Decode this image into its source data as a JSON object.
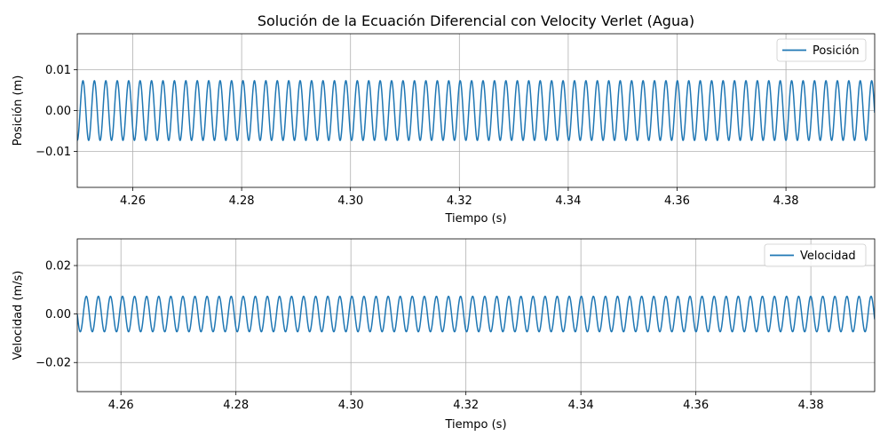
{
  "figure_title": "Solución de la Ecuación Diferencial con Velocity Verlet (Agua)",
  "colors": {
    "series": "#1f77b4",
    "grid": "#b0b0b0",
    "axes": "#000000"
  },
  "chart_data": [
    {
      "type": "line",
      "title": "Solución de la Ecuación Diferencial con Velocity Verlet (Agua)",
      "xlabel": "Tiempo (s)",
      "ylabel": "Posición (m)",
      "xlim": [
        4.2498,
        4.3963
      ],
      "ylim": [
        -0.0188,
        0.0188
      ],
      "xticks": [
        4.26,
        4.28,
        4.3,
        4.32,
        4.34,
        4.36,
        4.38
      ],
      "xtick_labels": [
        "4.26",
        "4.28",
        "4.30",
        "4.32",
        "4.34",
        "4.36",
        "4.38"
      ],
      "yticks": [
        0.01,
        0.0,
        -0.01
      ],
      "ytick_labels": [
        "0.01",
        "0.00",
        "−0.01"
      ],
      "grid": true,
      "legend_position": "upper right",
      "series": [
        {
          "name": "Posición",
          "amplitude": 0.0073,
          "period": 0.0021,
          "phase_at_xmin": 0.75,
          "x_start": 4.2498,
          "x_end": 4.3963
        }
      ]
    },
    {
      "type": "line",
      "title": "",
      "xlabel": "Tiempo (s)",
      "ylabel": "Velocidad (m/s)",
      "xlim": [
        4.2524,
        4.3911
      ],
      "ylim": [
        -0.032,
        0.031
      ],
      "xticks": [
        4.26,
        4.28,
        4.3,
        4.32,
        4.34,
        4.36,
        4.38
      ],
      "xtick_labels": [
        "4.26",
        "4.28",
        "4.30",
        "4.32",
        "4.34",
        "4.36",
        "4.38"
      ],
      "yticks": [
        0.02,
        0.0,
        -0.02
      ],
      "ytick_labels": [
        "0.02",
        "0.00",
        "−0.02"
      ],
      "grid": true,
      "legend_position": "upper right",
      "series": [
        {
          "name": "Velocidad",
          "amplitude": 0.0073,
          "period": 0.0021,
          "phase_at_xmin": 0.5,
          "x_start": 4.2524,
          "x_end": 4.3911
        }
      ]
    }
  ]
}
